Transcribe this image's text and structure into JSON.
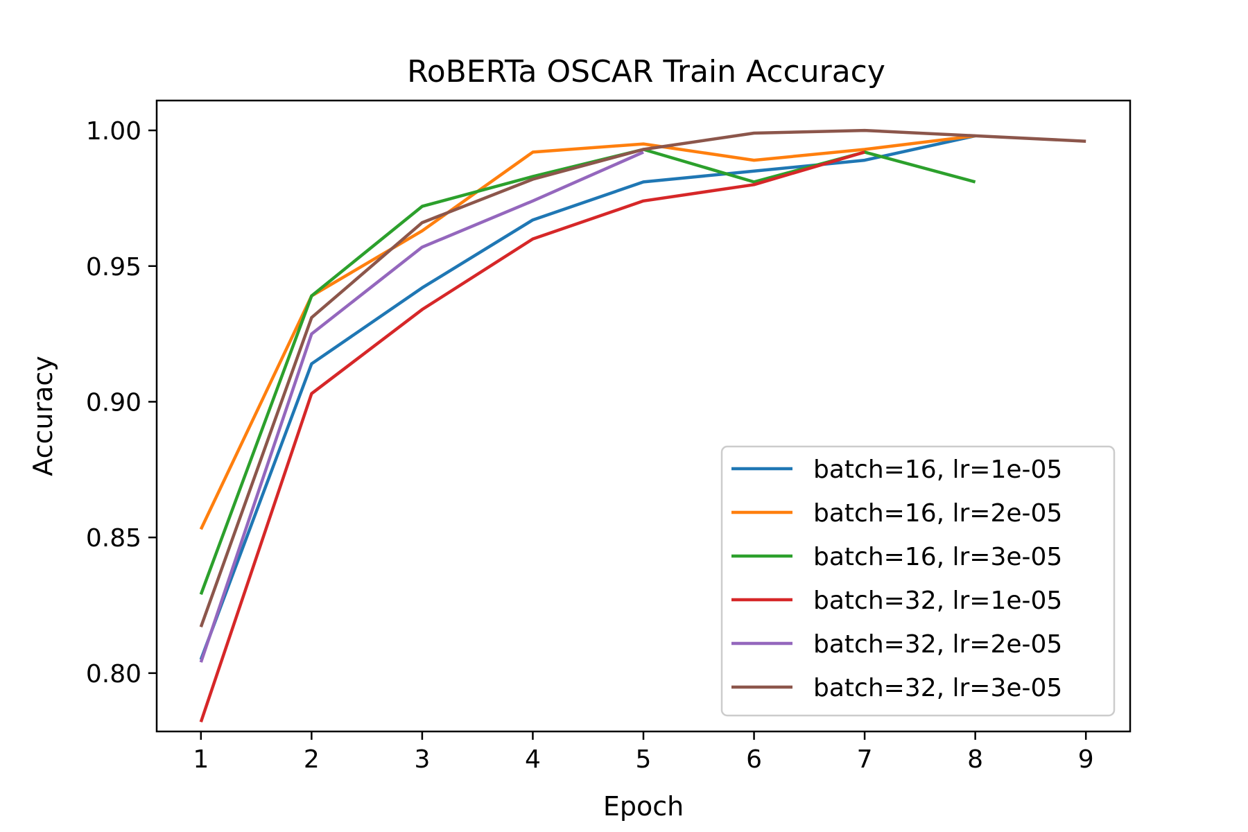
{
  "chart_data": {
    "type": "line",
    "title": "RoBERTa OSCAR Train Accuracy",
    "xlabel": "Epoch",
    "ylabel": "Accuracy",
    "xlim": [
      0.6,
      9.4
    ],
    "ylim": [
      0.7785,
      1.011
    ],
    "xticks": [
      1,
      2,
      3,
      4,
      5,
      6,
      7,
      8,
      9
    ],
    "xtick_labels": [
      "1",
      "2",
      "3",
      "4",
      "5",
      "6",
      "7",
      "8",
      "9"
    ],
    "yticks": [
      0.8,
      0.85,
      0.9,
      0.95,
      1.0
    ],
    "ytick_labels": [
      "0.80",
      "0.85",
      "0.90",
      "0.95",
      "1.00"
    ],
    "grid": false,
    "legend_position": "lower-right",
    "series": [
      {
        "name": "batch=16, lr=1e-05",
        "color": "#1f77b4",
        "x": [
          1,
          2,
          3,
          4,
          5,
          6,
          7,
          8
        ],
        "y": [
          0.805,
          0.914,
          0.942,
          0.967,
          0.981,
          0.985,
          0.989,
          0.998
        ]
      },
      {
        "name": "batch=16, lr=2e-05",
        "color": "#ff7f0e",
        "x": [
          1,
          2,
          3,
          4,
          5,
          6,
          7,
          8
        ],
        "y": [
          0.853,
          0.939,
          0.963,
          0.992,
          0.995,
          0.989,
          0.993,
          0.998
        ]
      },
      {
        "name": "batch=16, lr=3e-05",
        "color": "#2ca02c",
        "x": [
          1,
          2,
          3,
          4,
          5,
          6,
          7,
          8
        ],
        "y": [
          0.829,
          0.939,
          0.972,
          0.983,
          0.993,
          0.981,
          0.992,
          0.981
        ]
      },
      {
        "name": "batch=32, lr=1e-05",
        "color": "#d62728",
        "x": [
          1,
          2,
          3,
          4,
          5,
          6,
          7
        ],
        "y": [
          0.782,
          0.903,
          0.934,
          0.96,
          0.974,
          0.98,
          0.992
        ]
      },
      {
        "name": "batch=32, lr=2e-05",
        "color": "#9467bd",
        "x": [
          1,
          2,
          3,
          4,
          5
        ],
        "y": [
          0.804,
          0.925,
          0.957,
          0.974,
          0.992
        ]
      },
      {
        "name": "batch=32, lr=3e-05",
        "color": "#8c564b",
        "x": [
          1,
          2,
          3,
          4,
          5,
          6,
          7,
          8,
          9
        ],
        "y": [
          0.817,
          0.931,
          0.966,
          0.982,
          0.993,
          0.999,
          1.0,
          0.998,
          0.996
        ]
      }
    ]
  }
}
